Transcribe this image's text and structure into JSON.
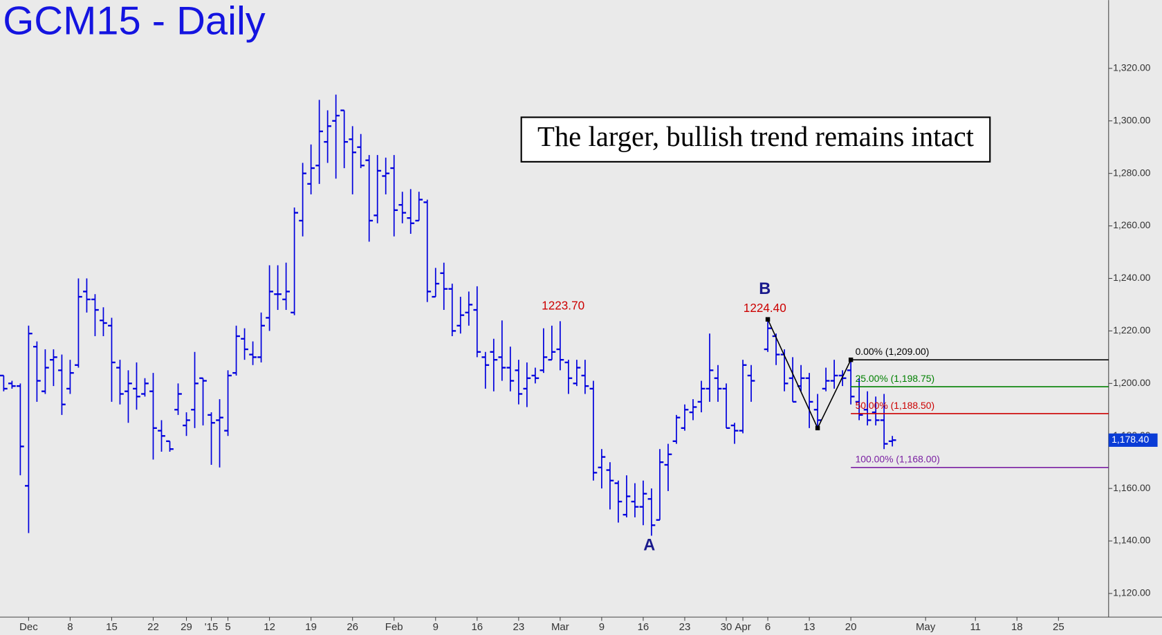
{
  "chart_data": {
    "type": "ohlc",
    "title": "GCM15 - Daily",
    "annotation_box": "The larger, bullish trend remains intact",
    "annotations": [
      {
        "text": "1223.70"
      },
      {
        "text": "1224.40"
      },
      {
        "text": "B"
      },
      {
        "text": "A"
      }
    ],
    "color": "#0000dd",
    "categories": [
      null,
      null,
      null,
      "Dec",
      null,
      null,
      null,
      null,
      "8",
      null,
      null,
      null,
      null,
      "15",
      null,
      null,
      null,
      null,
      "22",
      null,
      null,
      null,
      "29",
      null,
      null,
      "'15",
      null,
      "5",
      null,
      null,
      null,
      null,
      "12",
      null,
      null,
      null,
      null,
      "19",
      null,
      null,
      null,
      null,
      "26",
      null,
      null,
      null,
      null,
      "Feb",
      null,
      null,
      null,
      null,
      "9",
      null,
      null,
      null,
      null,
      "16",
      null,
      null,
      null,
      null,
      "23",
      null,
      null,
      null,
      null,
      "Mar",
      null,
      null,
      null,
      null,
      "9",
      null,
      null,
      null,
      null,
      "16",
      null,
      null,
      null,
      null,
      "23",
      null,
      null,
      null,
      null,
      "30",
      null,
      "Apr",
      null,
      null,
      "6",
      null,
      null,
      null,
      null,
      "13",
      null,
      null,
      null,
      null,
      "20",
      null,
      null,
      null,
      null,
      null,
      null,
      null,
      null,
      "May",
      null,
      null,
      null,
      null,
      null,
      "11",
      null,
      null,
      null,
      null,
      "18",
      null,
      null,
      null,
      null,
      "25",
      null,
      null,
      null,
      null,
      null
    ],
    "open": [
      1203,
      1200,
      1199,
      1161,
      1214,
      1197,
      1209,
      1205,
      1198,
      1207,
      1235,
      1232,
      1224,
      1222,
      1206,
      1197,
      1198,
      1196,
      1197,
      1182,
      1178,
      1190,
      1184,
      1190,
      1202,
      1188,
      1186,
      1182,
      1204,
      1217,
      1211,
      1210,
      1225,
      1234,
      1232,
      1227,
      1262,
      1276,
      1283,
      1292,
      1300,
      1304,
      1293,
      1290,
      1285,
      1264,
      1279,
      1282,
      1268,
      1263,
      1262,
      1269,
      1233,
      1242,
      1236,
      1222,
      1227,
      1228,
      1210,
      1212,
      1210,
      1206,
      1205,
      1198,
      1203,
      1205,
      1209,
      1213,
      1208,
      1200,
      1203,
      1198,
      1168,
      1167,
      1162,
      1150,
      1155,
      1153,
      1156,
      1148,
      1169,
      1178,
      1183,
      1189,
      1193,
      1198,
      1202,
      1198,
      1184,
      1182,
      1203,
      null,
      1213,
      1218,
      1211,
      1202,
      1199,
      1202,
      1190,
      1198,
      1201,
      1203,
      1205,
      1193,
      1190,
      1189,
      1186,
      1178,
      null,
      null,
      null,
      null,
      null,
      null,
      null,
      null,
      null,
      null,
      null,
      null,
      null,
      null,
      null,
      null,
      null,
      null,
      null,
      null,
      null,
      null,
      null,
      null,
      null
    ],
    "high": [
      1203,
      1201,
      1200,
      1222,
      1216,
      1213,
      1213,
      1211,
      1209,
      1240,
      1240,
      1234,
      1229,
      1225,
      1209,
      1205,
      1208,
      1202,
      1204,
      1186,
      1178,
      1200,
      1189,
      1212,
      1202,
      1189,
      1194,
      1205,
      1222,
      1221,
      1216,
      1227,
      1245,
      1245,
      1246,
      1267,
      1284,
      1291,
      1308,
      1304,
      1310,
      1304,
      1298,
      1295,
      1287,
      1287,
      1286,
      1287,
      1273,
      1274,
      1273,
      1270,
      1244,
      1246,
      1238,
      1233,
      1235,
      1237,
      1212,
      1217,
      1224,
      1214,
      1209,
      1208,
      1206,
      1221,
      1222,
      1223.7,
      1209,
      1209,
      1209,
      1201,
      1175,
      1170,
      1163,
      1165,
      1162,
      1163,
      1160,
      1175,
      1177,
      1188,
      1192,
      1194,
      1201,
      1219,
      1207,
      1200,
      1185,
      1209,
      1207,
      null,
      1224.4,
      1219,
      1213,
      1210,
      1207,
      1204,
      1196,
      1206,
      1209,
      1205,
      1209,
      1202,
      1197,
      1195,
      1196,
      1180,
      null,
      null,
      null,
      null,
      null,
      null,
      null,
      null,
      null,
      null,
      null,
      null,
      null,
      null,
      null,
      null,
      null,
      null,
      null,
      null,
      null,
      null,
      null,
      null,
      null
    ],
    "low": [
      1197,
      1198,
      1165,
      1143,
      1193,
      1196,
      1199,
      1188,
      1196,
      1206,
      1227,
      1218,
      1218,
      1193,
      1192,
      1185,
      1190,
      1195,
      1171,
      1174,
      1174,
      1188,
      1180,
      1183,
      1184,
      1169,
      1168,
      1180,
      1203,
      1209,
      1207,
      1208,
      1220,
      1228,
      1228,
      1226,
      1256,
      1272,
      1276,
      1284,
      1278,
      1282,
      1272,
      1282,
      1254,
      1261,
      1272,
      1256,
      1261,
      1257,
      1262,
      1231,
      1233,
      1228,
      1218,
      1219,
      1222,
      1210,
      1198,
      1197,
      1201,
      1197,
      1192,
      1191,
      1200,
      1204,
      1209,
      1205,
      1196,
      1199,
      1196,
      1163,
      1160,
      1152,
      1147,
      1149,
      1149,
      1146,
      1142,
      1148,
      1159,
      1177,
      1182,
      1186,
      1189,
      1193,
      1193,
      1183,
      1177,
      1181,
      1193,
      null,
      1212,
      1207,
      1197,
      1193,
      1197,
      1183,
      1183,
      1197,
      1198,
      1199,
      1192,
      1186,
      1184,
      1184,
      1175,
      1176,
      null,
      null,
      null,
      null,
      null,
      null,
      null,
      null,
      null,
      null,
      null,
      null,
      null,
      null,
      null,
      null,
      null,
      null,
      null,
      null,
      null,
      null,
      null,
      null,
      null
    ],
    "close": [
      1198,
      1199,
      1176,
      1219,
      1201,
      1206,
      1210,
      1192,
      1204,
      1233,
      1232,
      1228,
      1223,
      1208,
      1196,
      1200,
      1195,
      1200,
      1183,
      1180,
      1175,
      1196,
      1186,
      1200,
      1201,
      1185,
      1187,
      1203,
      1218,
      1213,
      1210,
      1222,
      1235,
      1234,
      1235,
      1265,
      1280,
      1282,
      1296,
      1298,
      1302,
      1292,
      1288,
      1283,
      1262,
      1281,
      1280,
      1266,
      1265,
      1261,
      1270,
      1235,
      1238,
      1236,
      1220,
      1226,
      1230,
      1212,
      1207,
      1209,
      1206,
      1201,
      1196,
      1202,
      1202,
      1210,
      1212,
      1209,
      1202,
      1206,
      1199,
      1166,
      1172,
      1163,
      1155,
      1157,
      1153,
      1158,
      1146,
      1170,
      1173,
      1187,
      1190,
      1191,
      1198,
      1205,
      1198,
      1183,
      1182,
      1207,
      1201,
      null,
      1221,
      1211,
      1200,
      1193,
      1202,
      1193,
      1186,
      1201,
      1203,
      1202,
      1195,
      1188,
      1186,
      1186,
      1177,
      1178.4,
      null,
      null,
      null,
      null,
      null,
      null,
      null,
      null,
      null,
      null,
      null,
      null,
      null,
      null,
      null,
      null,
      null,
      null,
      null,
      null,
      null,
      null,
      null,
      null,
      null
    ],
    "fib_levels": [
      {
        "label": "0.00% (1,209.00)",
        "value": 1209,
        "color": "#000000"
      },
      {
        "label": "25.00% (1,198.75)",
        "value": 1198.75,
        "color": "#008000"
      },
      {
        "label": "50.00% (1,188.50)",
        "value": 1188.5,
        "color": "#cc0000"
      },
      {
        "label": "100.00% (1,168.00)",
        "value": 1168,
        "color": "#7a1fa2"
      }
    ],
    "last_price": {
      "value": 1178.4,
      "label": "1,178.40"
    },
    "ylim": [
      1111,
      1346
    ],
    "yticks": [
      {
        "value": 1120,
        "label": "1,120.00"
      },
      {
        "value": 1140,
        "label": "1,140.00"
      },
      {
        "value": 1160,
        "label": "1,160.00"
      },
      {
        "value": 1180,
        "label": "1,180.00"
      },
      {
        "value": 1200,
        "label": "1,200.00"
      },
      {
        "value": 1220,
        "label": "1,220.00"
      },
      {
        "value": 1240,
        "label": "1,240.00"
      },
      {
        "value": 1260,
        "label": "1,260.00"
      },
      {
        "value": 1280,
        "label": "1,280.00"
      },
      {
        "value": 1300,
        "label": "1,300.00"
      },
      {
        "value": 1320,
        "label": "1,320.00"
      }
    ]
  }
}
